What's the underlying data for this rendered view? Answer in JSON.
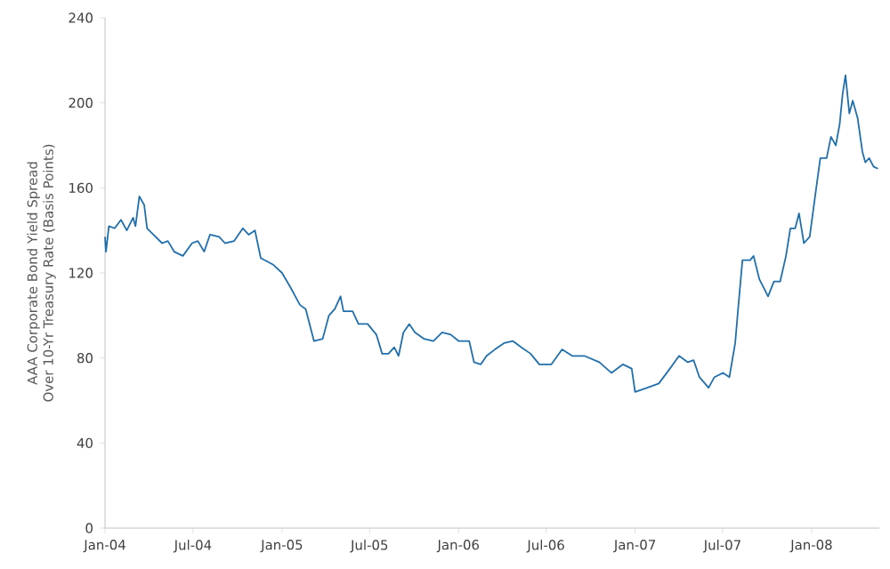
{
  "chart_data": {
    "type": "line",
    "ylabel": "AAA Corporate Bond Yield Spread\nOver 10-Yr Treasury Rate (Basis Points)",
    "xlim": [
      "2004-01-01",
      "2008-05-20"
    ],
    "ylim": [
      0,
      240
    ],
    "yticks": [
      0,
      40,
      80,
      120,
      160,
      200,
      240
    ],
    "xticks": [
      {
        "value": "2004-01-01",
        "label": "Jan-04"
      },
      {
        "value": "2004-07-01",
        "label": "Jul-04"
      },
      {
        "value": "2005-01-01",
        "label": "Jan-05"
      },
      {
        "value": "2005-07-01",
        "label": "Jul-05"
      },
      {
        "value": "2006-01-01",
        "label": "Jan-06"
      },
      {
        "value": "2006-07-01",
        "label": "Jul-06"
      },
      {
        "value": "2007-01-01",
        "label": "Jan-07"
      },
      {
        "value": "2007-07-01",
        "label": "Jul-07"
      },
      {
        "value": "2008-01-01",
        "label": "Jan-08"
      }
    ],
    "grid": false,
    "marker": "none",
    "line_style": "solid",
    "x": [
      "2004-01-01",
      "2004-01-03",
      "2004-01-09",
      "2004-01-21",
      "2004-02-03",
      "2004-02-15",
      "2004-02-28",
      "2004-03-04",
      "2004-03-12",
      "2004-03-22",
      "2004-03-28",
      "2004-04-10",
      "2004-04-28",
      "2004-05-10",
      "2004-05-23",
      "2004-06-10",
      "2004-06-29",
      "2004-07-11",
      "2004-07-24",
      "2004-08-05",
      "2004-08-24",
      "2004-09-05",
      "2004-09-24",
      "2004-10-12",
      "2004-10-24",
      "2004-11-06",
      "2004-11-18",
      "2004-12-13",
      "2005-01-01",
      "2005-01-19",
      "2005-02-07",
      "2005-02-19",
      "2005-03-08",
      "2005-03-26",
      "2005-04-08",
      "2005-04-20",
      "2005-05-02",
      "2005-05-08",
      "2005-05-27",
      "2005-06-08",
      "2005-06-27",
      "2005-07-15",
      "2005-07-27",
      "2005-08-09",
      "2005-08-21",
      "2005-08-30",
      "2005-09-09",
      "2005-09-21",
      "2005-10-03",
      "2005-10-22",
      "2005-11-10",
      "2005-11-28",
      "2005-12-16",
      "2006-01-01",
      "2006-01-23",
      "2006-02-02",
      "2006-02-16",
      "2006-02-28",
      "2006-03-17",
      "2006-04-05",
      "2006-04-23",
      "2006-05-11",
      "2006-05-30",
      "2006-06-17",
      "2006-07-12",
      "2006-08-03",
      "2006-08-24",
      "2006-09-18",
      "2006-10-19",
      "2006-11-13",
      "2006-12-07",
      "2006-12-25",
      "2007-01-01",
      "2007-01-26",
      "2007-02-19",
      "2007-03-14",
      "2007-04-02",
      "2007-04-20",
      "2007-05-02",
      "2007-05-14",
      "2007-06-02",
      "2007-06-14",
      "2007-07-02",
      "2007-07-15",
      "2007-07-27",
      "2007-08-02",
      "2007-08-11",
      "2007-08-27",
      "2007-09-03",
      "2007-09-15",
      "2007-10-03",
      "2007-10-15",
      "2007-10-28",
      "2007-11-09",
      "2007-11-18",
      "2007-11-28",
      "2007-12-06",
      "2007-12-16",
      "2007-12-28",
      "2008-01-10",
      "2008-01-19",
      "2008-02-01",
      "2008-02-10",
      "2008-02-20",
      "2008-02-28",
      "2008-03-05",
      "2008-03-11",
      "2008-03-19",
      "2008-03-26",
      "2008-04-05",
      "2008-04-15",
      "2008-04-21",
      "2008-04-29",
      "2008-05-08",
      "2008-05-17"
    ],
    "series": [
      {
        "color": "#1f6fad",
        "values": [
          137,
          130,
          142,
          141,
          145,
          140,
          146,
          142,
          156,
          152,
          141,
          138,
          134,
          135,
          130,
          128,
          134,
          135,
          130,
          138,
          137,
          134,
          135,
          141,
          138,
          140,
          127,
          124,
          120,
          113,
          105,
          103,
          88,
          89,
          100,
          103,
          109,
          102,
          102,
          96,
          96,
          91,
          82,
          82,
          85,
          81,
          92,
          96,
          92,
          89,
          88,
          92,
          91,
          88,
          88,
          78,
          77,
          81,
          84,
          87,
          88,
          85,
          82,
          77,
          77,
          84,
          81,
          81,
          78,
          73,
          77,
          75,
          64,
          66,
          68,
          75,
          81,
          78,
          79,
          71,
          66,
          71,
          73,
          71,
          87,
          103,
          126,
          126,
          128,
          117,
          109,
          116,
          116,
          128,
          141,
          141,
          148,
          134,
          137,
          159,
          174,
          174,
          184,
          180,
          190,
          204,
          213,
          195,
          201,
          193,
          177,
          172,
          174,
          170,
          169
        ]
      }
    ]
  }
}
